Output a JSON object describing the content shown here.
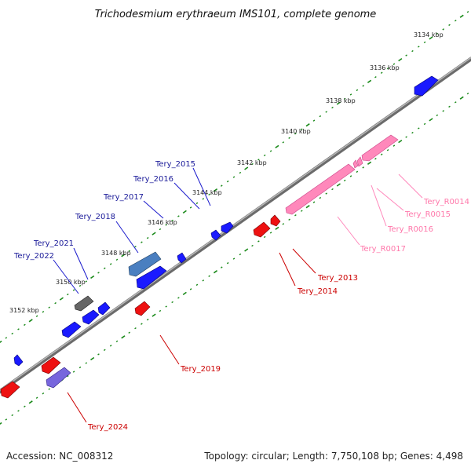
{
  "title": "Trichodesmium erythraeum IMS101, complete genome",
  "footer": {
    "accession": "Accession: NC_008312",
    "summary": "Topology: circular; Length: 7,750,108 bp; Genes: 4,498"
  },
  "kbp_labels": [
    "3134 kbp",
    "3136 kbp",
    "3138 kbp",
    "3140 kbp",
    "3142 kbp",
    "3144 kbp",
    "3146 kbp",
    "3148 kbp",
    "3150 kbp",
    "3152 kbp"
  ],
  "gene_labels": {
    "tery_2015": "Tery_2015",
    "tery_2016": "Tery_2016",
    "tery_2017": "Tery_2017",
    "tery_2018": "Tery_2018",
    "tery_2021": "Tery_2021",
    "tery_2022": "Tery_2022",
    "tery_2013": "Tery_2013",
    "tery_2014": "Tery_2014",
    "tery_2019": "Tery_2019",
    "tery_2024": "Tery_2024",
    "tery_r0014": "Tery_R0014",
    "tery_r0015": "Tery_R0015",
    "tery_r0016": "Tery_R0016",
    "tery_r0017": "Tery_R0017"
  },
  "colors": {
    "forward_cds": "#1a1aff",
    "reverse_cds": "#ee1111",
    "rna": "#ff88bb",
    "pseudo": "#777777",
    "label_forward": "#1a1a99",
    "label_reverse": "#cc0000",
    "label_rna": "#ff77aa",
    "tick": "#1a8a1a",
    "backbone": "#808080"
  }
}
